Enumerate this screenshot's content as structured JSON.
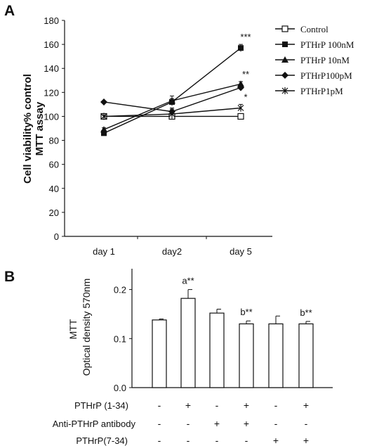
{
  "chart_data": [
    {
      "panel": "A",
      "type": "line",
      "ylabel": "Cell viability% control\nMTT assay",
      "categories": [
        "day 1",
        "day2",
        "day 5"
      ],
      "ylim": [
        0,
        180
      ],
      "yticks": [
        0,
        20,
        40,
        60,
        80,
        100,
        120,
        140,
        160,
        180
      ],
      "series": [
        {
          "name": "Control",
          "marker": "square-open",
          "values": [
            100,
            100,
            100
          ],
          "errors": [
            0,
            0,
            1.5
          ],
          "annotation": ""
        },
        {
          "name": "PTHrP 100nM",
          "marker": "square",
          "values": [
            86,
            112,
            157
          ],
          "errors": [
            1.5,
            3,
            3
          ],
          "annotation": "***"
        },
        {
          "name": "PTHrP 10nM",
          "marker": "triangle",
          "values": [
            89,
            113,
            127
          ],
          "errors": [
            1.5,
            4,
            2
          ],
          "annotation": "**"
        },
        {
          "name": "PTHrP100pM",
          "marker": "diamond",
          "values": [
            112,
            104,
            124
          ],
          "errors": [
            0,
            3,
            2
          ],
          "annotation": ""
        },
        {
          "name": "PTHrP1pM",
          "marker": "star",
          "values": [
            100,
            102,
            107
          ],
          "errors": [
            1,
            4,
            3
          ],
          "annotation": "*"
        }
      ],
      "grid": false,
      "legend": "right"
    },
    {
      "panel": "B",
      "type": "bar",
      "ylabel_top": "MTT",
      "ylabel_bottom": "Optical density 570nm",
      "ylim": [
        0,
        0.25
      ],
      "yticks": [
        "0.0",
        "0.1",
        "0.2"
      ],
      "values": [
        0.138,
        0.182,
        0.152,
        0.13,
        0.13,
        0.13
      ],
      "errors": [
        0.002,
        0.018,
        0.008,
        0.006,
        0.016,
        0.005
      ],
      "annotations": [
        "",
        "a**",
        "",
        "b**",
        "",
        "b**"
      ],
      "conditions": [
        {
          "label": "PTHrP (1-34)",
          "values": [
            "-",
            "+",
            "-",
            "+",
            "-",
            "+"
          ]
        },
        {
          "label": "Anti-PTHrP antibody",
          "values": [
            "-",
            "-",
            "+",
            "+",
            "-",
            "-"
          ]
        },
        {
          "label": "PTHrP(7-34)",
          "values": [
            "-",
            "-",
            "-",
            "-",
            "+",
            "+"
          ]
        }
      ]
    }
  ],
  "panels": {
    "a_label": "A",
    "b_label": "B"
  }
}
